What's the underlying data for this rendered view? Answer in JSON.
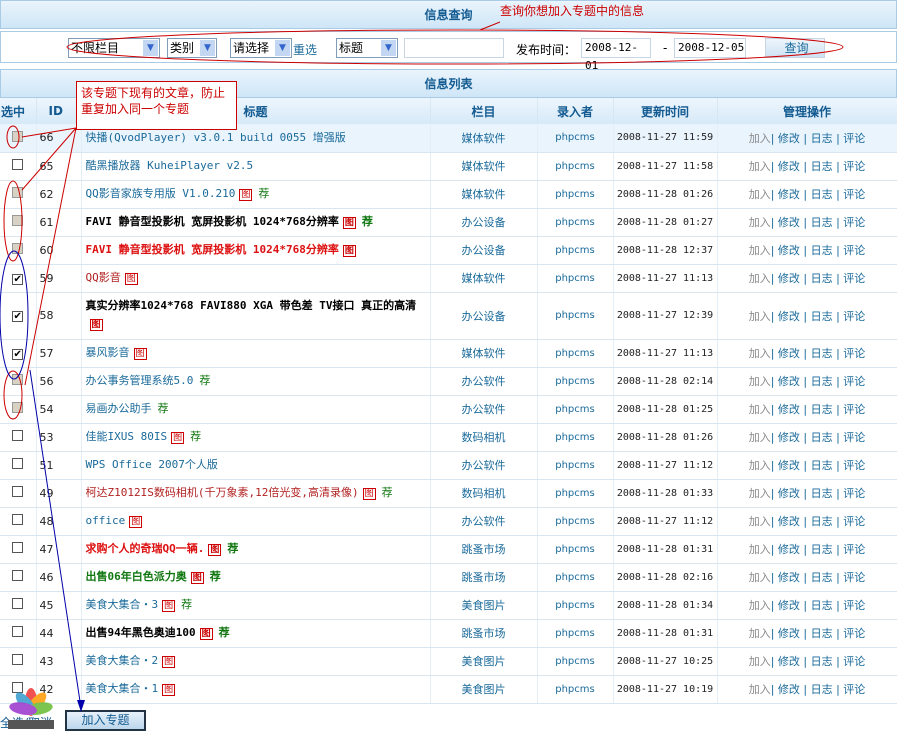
{
  "query": {
    "title": "信息查询",
    "column_select": "不限栏目",
    "type_select": "类别",
    "choose_select": "请选择",
    "reset_label": "重选",
    "field_select": "标题",
    "keyword": "",
    "date_label": "发布时间：",
    "date_from": "2008-12-01",
    "date_sep": "-",
    "date_to": "2008-12-05",
    "search_label": "查询"
  },
  "list": {
    "title": "信息列表",
    "headers": [
      "选中",
      "ID",
      "标题",
      "栏目",
      "录入者",
      "更新时间",
      "管理操作"
    ],
    "ops": [
      "加入",
      "修改",
      "日志",
      "评论"
    ],
    "badge_tu": "图",
    "badge_jian": "荐",
    "rows": [
      {
        "id": "66",
        "title": "快播(QvodPlayer) v3.0.1 build 0055 增强版",
        "color": "#1a6a9a",
        "bold": false,
        "tu": false,
        "jian": false,
        "cat": "媒体软件",
        "user": "phpcms",
        "time": "2008-11-27 11:59",
        "checked": false,
        "disabled": true
      },
      {
        "id": "65",
        "title": "酷黑播放器 KuheiPlayer v2.5",
        "color": "#1a6a9a",
        "bold": false,
        "tu": false,
        "jian": false,
        "cat": "媒体软件",
        "user": "phpcms",
        "time": "2008-11-27 11:58",
        "checked": false,
        "disabled": false
      },
      {
        "id": "62",
        "title": "QQ影音家族专用版 V1.0.210",
        "color": "#1a6a9a",
        "bold": false,
        "tu": true,
        "jian": true,
        "cat": "媒体软件",
        "user": "phpcms",
        "time": "2008-11-28 01:26",
        "checked": false,
        "disabled": true
      },
      {
        "id": "61",
        "title": "FAVI 静音型投影机 宽屏投影机 1024*768分辨率",
        "color": "#000000",
        "bold": true,
        "tu": true,
        "jian": true,
        "cat": "办公设备",
        "user": "phpcms",
        "time": "2008-11-28 01:27",
        "checked": false,
        "disabled": true
      },
      {
        "id": "60",
        "title": "FAVI 静音型投影机 宽屏投影机 1024*768分辨率",
        "color": "#dd1111",
        "bold": true,
        "tu": true,
        "jian": false,
        "cat": "办公设备",
        "user": "phpcms",
        "time": "2008-11-28 12:37",
        "checked": false,
        "disabled": true
      },
      {
        "id": "59",
        "title": "QQ影音",
        "color": "#b22222",
        "bold": false,
        "tu": true,
        "jian": false,
        "cat": "媒体软件",
        "user": "phpcms",
        "time": "2008-11-27 11:13",
        "checked": true,
        "disabled": false
      },
      {
        "id": "58",
        "title": "真实分辨率1024*768 FAVI880 XGA 带色差 TV接口 真正的高清",
        "color": "#000000",
        "bold": true,
        "tu": true,
        "jian": false,
        "cat": "办公设备",
        "user": "phpcms",
        "time": "2008-11-27 12:39",
        "checked": true,
        "disabled": false
      },
      {
        "id": "57",
        "title": "暴风影音",
        "color": "#1a6a9a",
        "bold": false,
        "tu": true,
        "jian": false,
        "cat": "媒体软件",
        "user": "phpcms",
        "time": "2008-11-27 11:13",
        "checked": true,
        "disabled": false
      },
      {
        "id": "56",
        "title": "办公事务管理系统5.0",
        "color": "#1a6a9a",
        "bold": false,
        "tu": false,
        "jian": true,
        "cat": "办公软件",
        "user": "phpcms",
        "time": "2008-11-28 02:14",
        "checked": false,
        "disabled": true
      },
      {
        "id": "54",
        "title": "易画办公助手",
        "color": "#1a6a9a",
        "bold": false,
        "tu": false,
        "jian": true,
        "cat": "办公软件",
        "user": "phpcms",
        "time": "2008-11-28 01:25",
        "checked": false,
        "disabled": true
      },
      {
        "id": "53",
        "title": "佳能IXUS 80IS",
        "color": "#1a6a9a",
        "bold": false,
        "tu": true,
        "jian": true,
        "cat": "数码相机",
        "user": "phpcms",
        "time": "2008-11-28 01:26",
        "checked": false,
        "disabled": false
      },
      {
        "id": "51",
        "title": "WPS Office 2007个人版",
        "color": "#1a6a9a",
        "bold": false,
        "tu": false,
        "jian": false,
        "cat": "办公软件",
        "user": "phpcms",
        "time": "2008-11-27 11:12",
        "checked": false,
        "disabled": false
      },
      {
        "id": "49",
        "title": "柯达Z1012IS数码相机(千万象素,12倍光变,高清录像)",
        "color": "#b22222",
        "bold": false,
        "tu": true,
        "jian": true,
        "cat": "数码相机",
        "user": "phpcms",
        "time": "2008-11-28 01:33",
        "checked": false,
        "disabled": false
      },
      {
        "id": "48",
        "title": "office",
        "color": "#1a6a9a",
        "bold": false,
        "tu": true,
        "jian": false,
        "cat": "办公软件",
        "user": "phpcms",
        "time": "2008-11-27 11:12",
        "checked": false,
        "disabled": false
      },
      {
        "id": "47",
        "title": "求购个人的奇瑞QQ一辆.",
        "color": "#dd1111",
        "bold": true,
        "tu": true,
        "jian": true,
        "cat": "跳蚤市场",
        "user": "phpcms",
        "time": "2008-11-28 01:31",
        "checked": false,
        "disabled": false
      },
      {
        "id": "46",
        "title": "出售06年白色派力奥",
        "color": "#117711",
        "bold": true,
        "tu": true,
        "jian": true,
        "cat": "跳蚤市场",
        "user": "phpcms",
        "time": "2008-11-28 02:16",
        "checked": false,
        "disabled": false
      },
      {
        "id": "45",
        "title": "美食大集合・3",
        "color": "#1a6a9a",
        "bold": false,
        "tu": true,
        "jian": true,
        "cat": "美食图片",
        "user": "phpcms",
        "time": "2008-11-28 01:34",
        "checked": false,
        "disabled": false
      },
      {
        "id": "44",
        "title": "出售94年黑色奥迪100",
        "color": "#000000",
        "bold": true,
        "tu": true,
        "jian": true,
        "cat": "跳蚤市场",
        "user": "phpcms",
        "time": "2008-11-28 01:31",
        "checked": false,
        "disabled": false
      },
      {
        "id": "43",
        "title": "美食大集合・2",
        "color": "#1a6a9a",
        "bold": false,
        "tu": true,
        "jian": false,
        "cat": "美食图片",
        "user": "phpcms",
        "time": "2008-11-27 10:25",
        "checked": false,
        "disabled": false
      },
      {
        "id": "42",
        "title": "美食大集合・1",
        "color": "#1a6a9a",
        "bold": false,
        "tu": true,
        "jian": false,
        "cat": "美食图片",
        "user": "phpcms",
        "time": "2008-11-27 10:19",
        "checked": false,
        "disabled": false
      }
    ]
  },
  "footer": {
    "select_all": "全选/取消",
    "add_topic": "加入专题"
  },
  "annotations": {
    "query_note": "查询你想加入专题中的信息",
    "existing_note": "该专题下现有的文章，防止重复加入同一个专题"
  },
  "watermark": "MISSYUAN.COM"
}
